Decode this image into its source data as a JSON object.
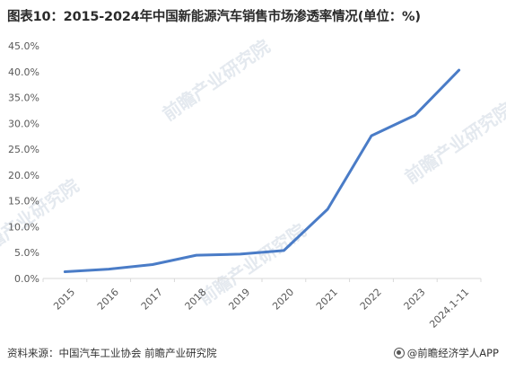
{
  "title": "图表10：2015-2024年中国新能源汽车销售市场渗透率情况(单位：%)",
  "source": "资料来源：中国汽车工业协会 前瞻产业研究院",
  "brand": "@前瞻经济学人APP",
  "watermark": "前瞻产业研究院",
  "colors": {
    "line": "#4a7cc7",
    "axis": "#d9d9d9",
    "text": "#595959"
  },
  "chart_data": {
    "type": "line",
    "categories": [
      "2015",
      "2016",
      "2017",
      "2018",
      "2019",
      "2020",
      "2021",
      "2022",
      "2023",
      "2024.1-11"
    ],
    "values": [
      1.3,
      1.8,
      2.7,
      4.5,
      4.7,
      5.4,
      13.4,
      27.6,
      31.6,
      40.3
    ],
    "yticks": [
      "0.0%",
      "5.0%",
      "10.0%",
      "15.0%",
      "20.0%",
      "25.0%",
      "30.0%",
      "35.0%",
      "40.0%",
      "45.0%"
    ],
    "ylim": [
      0,
      45
    ],
    "grid": false,
    "legend": "none"
  }
}
